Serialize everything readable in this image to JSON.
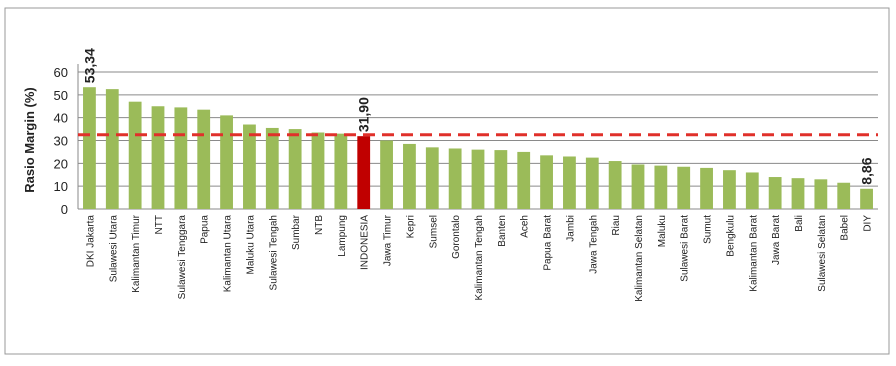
{
  "chart_data": {
    "type": "bar",
    "y_label": "Rasio Margin (%)",
    "categories": [
      "DKI Jakarta",
      "Sulawesi Utara",
      "Kalimantan Timur",
      "NTT",
      "Sulawesi Tenggara",
      "Papua",
      "Kalimantan Utara",
      "Maluku Utara",
      "Sulawesi Tengah",
      "Sumbar",
      "NTB",
      "Lampung",
      "INDONESIA",
      "Jawa Timur",
      "Kepri",
      "Sumsel",
      "Gorontalo",
      "Kalimantan Tengah",
      "Banten",
      "Aceh",
      "Papua Barat",
      "Jambi",
      "Jawa Tengah",
      "Riau",
      "Kalimantan Selatan",
      "Maluku",
      "Sulawesi Barat",
      "Sumut",
      "Bengkulu",
      "Kalimantan Barat",
      "Jawa Barat",
      "Bali",
      "Sulawesi Selatan",
      "Babel",
      "DIY"
    ],
    "values": [
      53.34,
      52.5,
      47,
      45,
      44.5,
      43.5,
      41,
      37,
      35.5,
      35,
      33.5,
      33,
      31.9,
      30,
      28.5,
      27,
      26.5,
      26,
      25.8,
      25,
      23.5,
      23,
      22.5,
      21,
      19.5,
      19,
      18.5,
      18,
      17,
      16,
      14,
      13.5,
      13,
      11.5,
      8.86
    ],
    "value_labels": [
      "53,34",
      null,
      null,
      null,
      null,
      null,
      null,
      null,
      null,
      null,
      null,
      null,
      "31,90",
      null,
      null,
      null,
      null,
      null,
      null,
      null,
      null,
      null,
      null,
      null,
      null,
      null,
      null,
      null,
      null,
      null,
      null,
      null,
      null,
      null,
      "8,86"
    ],
    "colors": [
      "#9bbb59",
      "#9bbb59",
      "#9bbb59",
      "#9bbb59",
      "#9bbb59",
      "#9bbb59",
      "#9bbb59",
      "#9bbb59",
      "#9bbb59",
      "#9bbb59",
      "#9bbb59",
      "#9bbb59",
      "#c00000",
      "#9bbb59",
      "#9bbb59",
      "#9bbb59",
      "#9bbb59",
      "#9bbb59",
      "#9bbb59",
      "#9bbb59",
      "#9bbb59",
      "#9bbb59",
      "#9bbb59",
      "#9bbb59",
      "#9bbb59",
      "#9bbb59",
      "#9bbb59",
      "#9bbb59",
      "#9bbb59",
      "#9bbb59",
      "#9bbb59",
      "#9bbb59",
      "#9bbb59",
      "#9bbb59",
      "#9bbb59"
    ],
    "reference_line": {
      "value": 32.5,
      "color": "#e0302a"
    },
    "ylim": [
      0,
      60
    ],
    "yticks": [
      0,
      10,
      20,
      30,
      40,
      50,
      60
    ],
    "grid": true
  }
}
